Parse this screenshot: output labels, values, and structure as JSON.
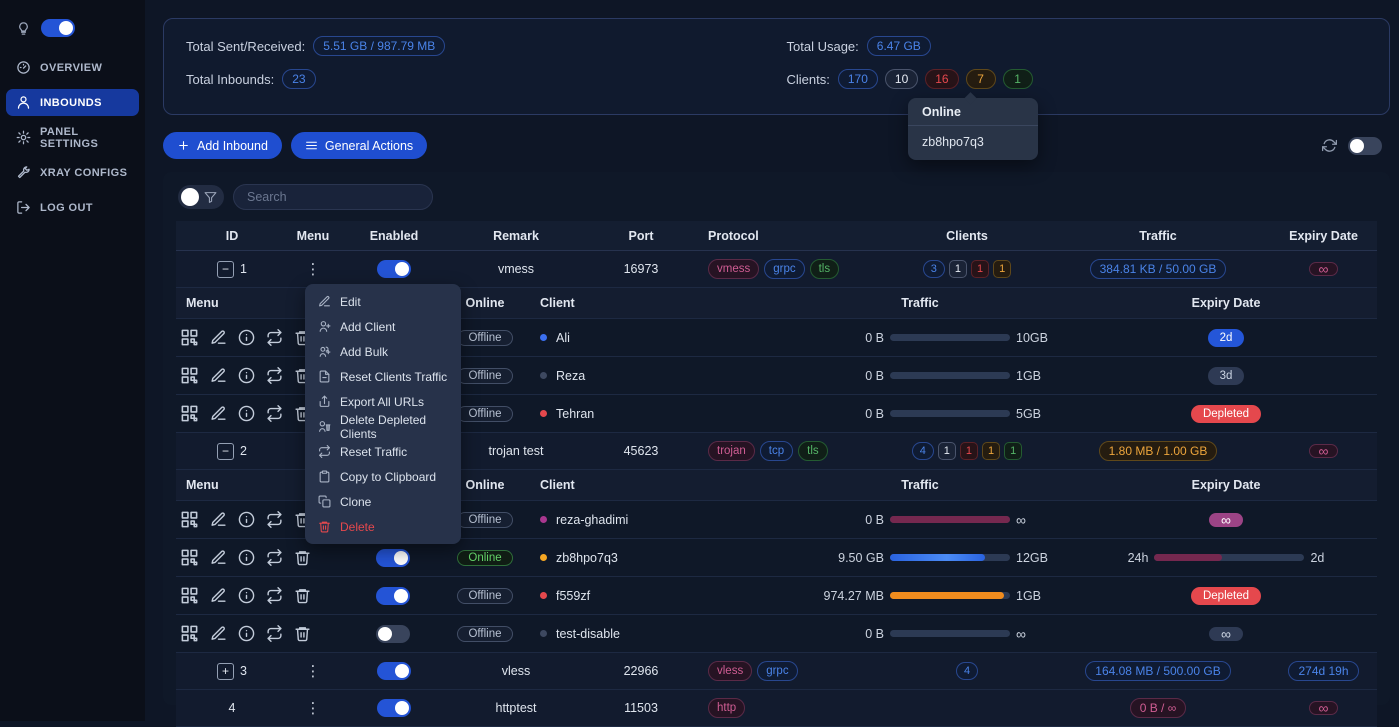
{
  "colors": {
    "accent_blue": "#1f4ed0",
    "toggle_on": "#2454d6",
    "badge_blue": "#4a83e8",
    "badge_red": "#e5484d",
    "badge_orange": "#eda53c",
    "badge_green": "#55b467",
    "badge_magenta": "#cf5d93",
    "filled_magenta": "#9c4486",
    "bar_orange": "#f08c1e",
    "bar_blue": "#3b82f6",
    "sidebar_active": "#16399e"
  },
  "sidebar": {
    "theme_toggle_on": true,
    "items": [
      {
        "label": "OVERVIEW",
        "icon": "gauge",
        "active": false
      },
      {
        "label": "INBOUNDS",
        "icon": "user",
        "active": true
      },
      {
        "label": "PANEL SETTINGS",
        "icon": "gear",
        "active": false
      },
      {
        "label": "XRAY CONFIGS",
        "icon": "wrench",
        "active": false
      },
      {
        "label": "LOG OUT",
        "icon": "logout",
        "active": false
      }
    ]
  },
  "stats": {
    "total_sent_received_label": "Total Sent/Received:",
    "total_sent_received": "5.51 GB / 987.79 MB",
    "total_inbounds_label": "Total Inbounds:",
    "total_inbounds": "23",
    "total_usage_label": "Total Usage:",
    "total_usage": "6.47 GB",
    "clients_label": "Clients:",
    "client_counts": [
      {
        "value": "170",
        "color": "blue"
      },
      {
        "value": "10",
        "color": "gray"
      },
      {
        "value": "16",
        "color": "red"
      },
      {
        "value": "7",
        "color": "orange"
      },
      {
        "value": "1",
        "color": "green"
      }
    ]
  },
  "online_popover": {
    "title": "Online",
    "client": "zb8hpo7q3"
  },
  "toolbar": {
    "add_inbound_label": "Add Inbound",
    "general_actions_label": "General Actions",
    "refresh_toggle_on": false
  },
  "search": {
    "placeholder": "Search"
  },
  "context_menu": {
    "items": [
      {
        "label": "Edit",
        "icon": "pencil",
        "danger": false
      },
      {
        "label": "Add Client",
        "icon": "user-plus",
        "danger": false
      },
      {
        "label": "Add Bulk",
        "icon": "users-plus",
        "danger": false
      },
      {
        "label": "Reset Clients Traffic",
        "icon": "file-reset",
        "danger": false
      },
      {
        "label": "Export All URLs",
        "icon": "export",
        "danger": false
      },
      {
        "label": "Delete Depleted Clients",
        "icon": "user-trash",
        "danger": false
      },
      {
        "label": "Reset Traffic",
        "icon": "repeat",
        "danger": false
      },
      {
        "label": "Copy to Clipboard",
        "icon": "clipboard",
        "danger": false
      },
      {
        "label": "Clone",
        "icon": "copy",
        "danger": false
      },
      {
        "label": "Delete",
        "icon": "trash",
        "danger": true
      }
    ]
  },
  "table": {
    "headers": {
      "id": "ID",
      "menu": "Menu",
      "enabled": "Enabled",
      "remark": "Remark",
      "port": "Port",
      "protocol": "Protocol",
      "clients": "Clients",
      "traffic": "Traffic",
      "expiry": "Expiry Date"
    },
    "client_headers": {
      "menu": "Menu",
      "online": "Online",
      "client": "Client",
      "traffic": "Traffic",
      "expiry": "Expiry Date"
    },
    "inbounds": [
      {
        "id": "1",
        "collapse": "minus",
        "menu_dots": true,
        "enabled": true,
        "remark": "vmess",
        "port": "16973",
        "protocols": [
          {
            "label": "vmess",
            "color": "magenta"
          },
          {
            "label": "grpc",
            "color": "blue"
          },
          {
            "label": "tls",
            "color": "green"
          }
        ],
        "client_counts": [
          {
            "value": "3",
            "color": "blue"
          },
          {
            "value": "1",
            "color": "gray"
          },
          {
            "value": "1",
            "color": "red"
          },
          {
            "value": "1",
            "color": "orange"
          }
        ],
        "traffic": {
          "text": "384.81 KB / 50.00 GB",
          "color": "blue"
        },
        "expiry": {
          "kind": "outline",
          "text": "∞",
          "color": "magenta"
        },
        "clients": [
          {
            "enabled": null,
            "online": "Offline",
            "online_color": "gray",
            "dot": "#3b6ff0",
            "name": "Ali",
            "traffic": {
              "used": "0 B",
              "limit": "10GB",
              "pct": 0,
              "color": "gray"
            },
            "expiry": {
              "kind": "filled",
              "text": "2d",
              "color": "blue"
            }
          },
          {
            "enabled": null,
            "online": "Offline",
            "online_color": "gray",
            "dot": "#3d4860",
            "name": "Reza",
            "traffic": {
              "used": "0 B",
              "limit": "1GB",
              "pct": 0,
              "color": "gray"
            },
            "expiry": {
              "kind": "soft",
              "text": "3d",
              "color": "gray"
            }
          },
          {
            "enabled": null,
            "online": "Offline",
            "online_color": "gray",
            "dot": "#e5484d",
            "name": "Tehran",
            "traffic": {
              "used": "0 B",
              "limit": "5GB",
              "pct": 0,
              "color": "gray"
            },
            "expiry": {
              "kind": "filled",
              "text": "Depleted",
              "color": "red"
            }
          }
        ]
      },
      {
        "id": "2",
        "collapse": "minus",
        "menu_dots": false,
        "enabled": null,
        "remark": "trojan test",
        "port": "45623",
        "protocols": [
          {
            "label": "trojan",
            "color": "magenta"
          },
          {
            "label": "tcp",
            "color": "blue"
          },
          {
            "label": "tls",
            "color": "green"
          }
        ],
        "client_counts": [
          {
            "value": "4",
            "color": "blue"
          },
          {
            "value": "1",
            "color": "gray"
          },
          {
            "value": "1",
            "color": "red"
          },
          {
            "value": "1",
            "color": "orange"
          },
          {
            "value": "1",
            "color": "green"
          }
        ],
        "traffic": {
          "text": "1.80 MB / 1.00 GB",
          "color": "orange"
        },
        "expiry": {
          "kind": "outline",
          "text": "∞",
          "color": "magenta"
        },
        "clients": [
          {
            "enabled": null,
            "online": "Offline",
            "online_color": "gray",
            "dot": "#a9378f",
            "name": "reza-ghadimi",
            "traffic": {
              "used": "0 B",
              "limit": "∞",
              "pct": 100,
              "color": "magenta"
            },
            "expiry": {
              "kind": "filled",
              "text": "∞",
              "color": "magenta"
            }
          },
          {
            "enabled": true,
            "online": "Online",
            "online_color": "green",
            "dot": "#f5a623",
            "name": "zb8hpo7q3",
            "traffic": {
              "used": "9.50 GB",
              "limit": "12GB",
              "pct": 79,
              "color": "blue"
            },
            "expiry": {
              "kind": "range",
              "from": "24h",
              "to": "2d",
              "pct": 45
            }
          },
          {
            "enabled": true,
            "online": "Offline",
            "online_color": "gray",
            "dot": "#e5484d",
            "name": "f559zf",
            "traffic": {
              "used": "974.27 MB",
              "limit": "1GB",
              "pct": 95,
              "color": "orange"
            },
            "expiry": {
              "kind": "filled",
              "text": "Depleted",
              "color": "red"
            }
          },
          {
            "enabled": false,
            "online": "Offline",
            "online_color": "gray",
            "dot": "#3d4860",
            "name": "test-disable",
            "traffic": {
              "used": "0 B",
              "limit": "∞",
              "pct": 0,
              "color": "gray"
            },
            "expiry": {
              "kind": "soft",
              "text": "∞",
              "color": "gray"
            }
          }
        ]
      },
      {
        "id": "3",
        "collapse": "plus",
        "menu_dots": true,
        "enabled": true,
        "remark": "vless",
        "port": "22966",
        "protocols": [
          {
            "label": "vless",
            "color": "magenta"
          },
          {
            "label": "grpc",
            "color": "blue"
          }
        ],
        "client_counts": [
          {
            "value": "4",
            "color": "blue"
          }
        ],
        "traffic": {
          "text": "164.08 MB / 500.00 GB",
          "color": "blue"
        },
        "expiry": {
          "kind": "outline",
          "text": "274d 19h",
          "color": "blue"
        },
        "clients": []
      },
      {
        "id": "4",
        "collapse": null,
        "menu_dots": true,
        "enabled": true,
        "remark": "httptest",
        "port": "11503",
        "protocols": [
          {
            "label": "http",
            "color": "magenta"
          }
        ],
        "client_counts": [],
        "traffic": {
          "text": "0 B / ∞",
          "color": "magenta"
        },
        "expiry": {
          "kind": "outline",
          "text": "∞",
          "color": "magenta"
        },
        "clients": []
      }
    ]
  }
}
